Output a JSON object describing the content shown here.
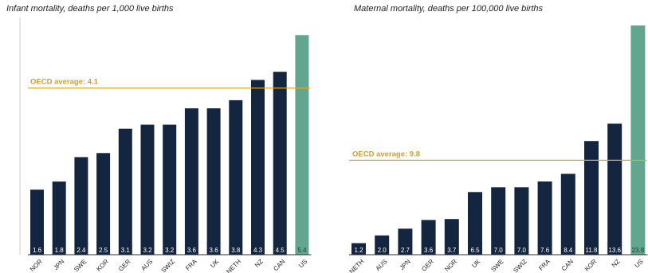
{
  "colors": {
    "bar": "#14263f",
    "highlight_bar": "#63a690",
    "oecd_line": "#d4a93a",
    "oecd_text": "#c9a030",
    "value_label": "#ffffff",
    "axis": "#2a2a2a",
    "left_border": "#cfcfcf"
  },
  "chart_data": [
    {
      "type": "bar",
      "title": "Infant mortality, deaths per 1,000 live births",
      "categories": [
        "NOR",
        "JPN",
        "SWE",
        "KOR",
        "GER",
        "AUS",
        "SWIZ",
        "FRA",
        "UK",
        "NETH",
        "NZ",
        "CAN",
        "US"
      ],
      "values": [
        1.6,
        1.8,
        2.4,
        2.5,
        3.1,
        3.2,
        3.2,
        3.6,
        3.6,
        3.8,
        4.3,
        4.5,
        5.4
      ],
      "value_labels": [
        "1.6",
        "1.8",
        "2.4",
        "2.5",
        "3.1",
        "3.2",
        "3.2",
        "3.6",
        "3.6",
        "3.8",
        "4.3",
        "4.5",
        "5.4"
      ],
      "highlight_category": "US",
      "reference_line": {
        "label": "OECD average: 4.1",
        "value": 4.1
      },
      "ylim": [
        0,
        5.6
      ]
    },
    {
      "type": "bar",
      "title": "Maternal mortality, deaths per 100,000 live births",
      "categories": [
        "NETH",
        "AUS",
        "JPN",
        "GER",
        "NOR",
        "UK",
        "SWE",
        "SWIZ",
        "FRA",
        "CAN",
        "KOR",
        "NZ",
        "US"
      ],
      "values": [
        1.2,
        2.0,
        2.7,
        3.6,
        3.7,
        6.5,
        7.0,
        7.0,
        7.6,
        8.4,
        11.8,
        13.6,
        23.8
      ],
      "value_labels": [
        "1.2",
        "2.0",
        "2.7",
        "3.6",
        "3.7",
        "6.5",
        "7.0",
        "7.0",
        "7.6",
        "8.4",
        "11.8",
        "13.6",
        "23.8"
      ],
      "highlight_category": "US",
      "reference_line": {
        "label": "OECD average: 9.8",
        "value": 9.8
      },
      "ylim": [
        0,
        23.8
      ]
    }
  ]
}
